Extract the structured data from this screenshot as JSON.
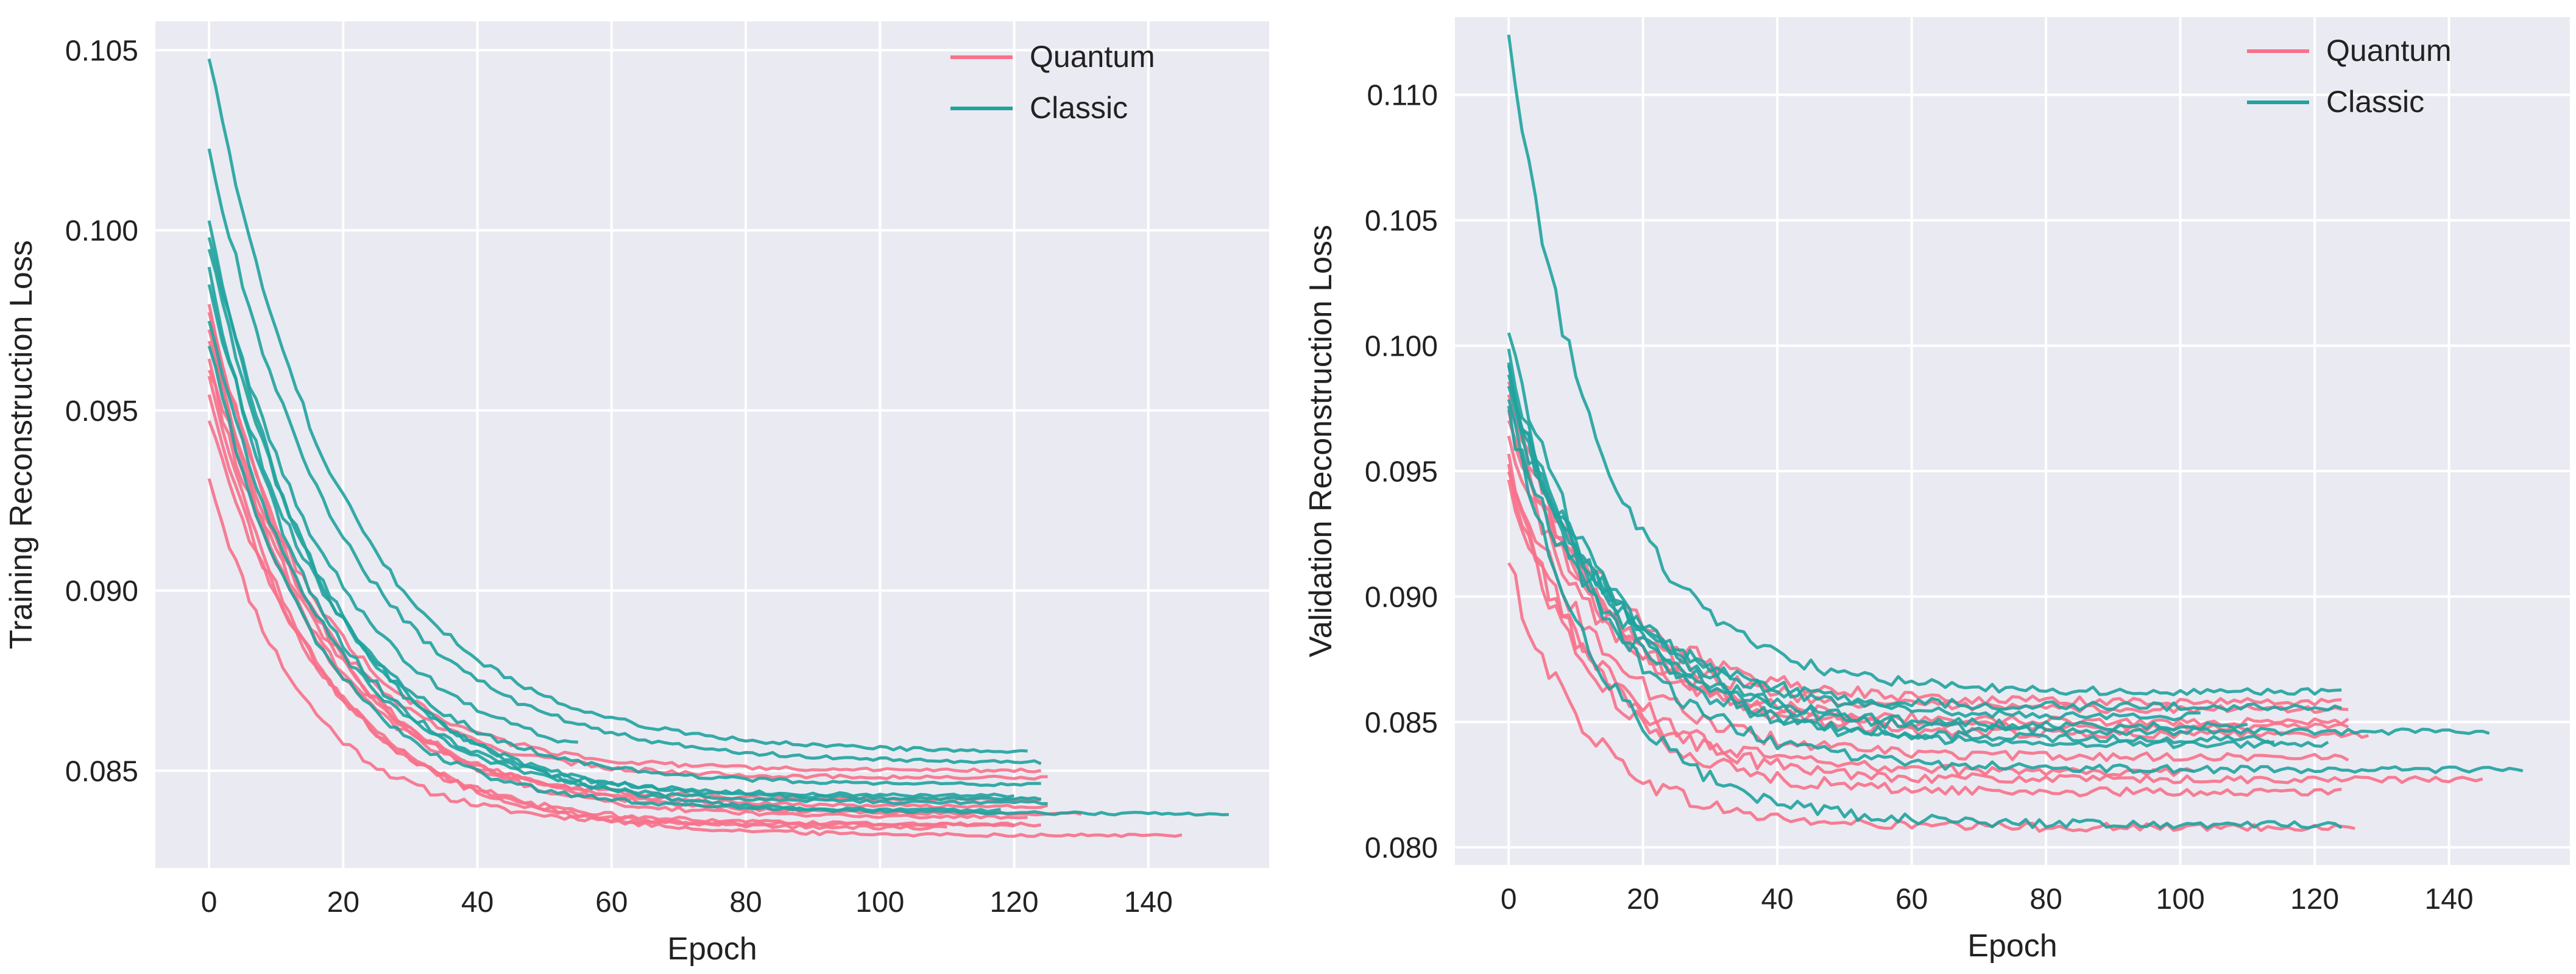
{
  "chart_data": [
    {
      "type": "line",
      "title": "",
      "xlabel": "Epoch",
      "ylabel": "Training Reconstruction Loss",
      "xlim": [
        -8,
        158
      ],
      "ylim": [
        0.0823,
        0.1058
      ],
      "xticks": [
        0,
        20,
        40,
        60,
        80,
        100,
        120,
        140
      ],
      "xtick_labels": [
        "0",
        "20",
        "40",
        "60",
        "80",
        "100",
        "120",
        "140"
      ],
      "yticks": [
        0.085,
        0.09,
        0.095,
        0.1,
        0.105
      ],
      "ytick_labels": [
        "0.085",
        "0.090",
        "0.095",
        "0.100",
        "0.105"
      ],
      "grid": true,
      "legend": {
        "placement": "top-right",
        "entries": [
          {
            "name": "Quantum",
            "color": "#f77189"
          },
          {
            "name": "Classic",
            "color": "#20a39e"
          }
        ]
      },
      "colors": {
        "background": "#eaeaf2",
        "grid": "#ffffff",
        "Quantum": "#f77189",
        "Classic": "#20a39e"
      },
      "series": [
        {
          "name": "Quantum",
          "start": 0.0932,
          "end": 0.0835,
          "epochs": 120,
          "tau": 14
        },
        {
          "name": "Quantum",
          "start": 0.0948,
          "end": 0.0832,
          "epochs": 145,
          "tau": 18
        },
        {
          "name": "Quantum",
          "start": 0.0962,
          "end": 0.084,
          "epochs": 125,
          "tau": 17
        },
        {
          "name": "Quantum",
          "start": 0.0978,
          "end": 0.085,
          "epochs": 124,
          "tau": 16
        },
        {
          "name": "Quantum",
          "start": 0.097,
          "end": 0.0848,
          "epochs": 125,
          "tau": 16
        },
        {
          "name": "Quantum",
          "start": 0.0965,
          "end": 0.0838,
          "epochs": 130,
          "tau": 18
        },
        {
          "name": "Quantum",
          "start": 0.0955,
          "end": 0.0835,
          "epochs": 124,
          "tau": 16
        },
        {
          "name": "Quantum",
          "start": 0.0973,
          "end": 0.0842,
          "epochs": 124,
          "tau": 15
        },
        {
          "name": "Quantum",
          "start": 0.098,
          "end": 0.0837,
          "epochs": 122,
          "tau": 17
        },
        {
          "name": "Quantum",
          "start": 0.096,
          "end": 0.0834,
          "epochs": 110,
          "tau": 16
        },
        {
          "name": "Classic",
          "start": 0.1048,
          "end": 0.0855,
          "epochs": 122,
          "tau": 20
        },
        {
          "name": "Classic",
          "start": 0.1023,
          "end": 0.0852,
          "epochs": 124,
          "tau": 20
        },
        {
          "name": "Classic",
          "start": 0.1003,
          "end": 0.0842,
          "epochs": 124,
          "tau": 17
        },
        {
          "name": "Classic",
          "start": 0.0995,
          "end": 0.0838,
          "epochs": 152,
          "tau": 19
        },
        {
          "name": "Classic",
          "start": 0.099,
          "end": 0.0843,
          "epochs": 120,
          "tau": 16
        },
        {
          "name": "Classic",
          "start": 0.0975,
          "end": 0.0841,
          "epochs": 125,
          "tau": 17
        },
        {
          "name": "Classic",
          "start": 0.0968,
          "end": 0.0839,
          "epochs": 118,
          "tau": 16
        },
        {
          "name": "Classic",
          "start": 0.0985,
          "end": 0.0846,
          "epochs": 124,
          "tau": 18
        },
        {
          "name": "Classic",
          "start": 0.0998,
          "end": 0.0849,
          "epochs": 55,
          "tau": 19
        }
      ]
    },
    {
      "type": "line",
      "title": "",
      "xlabel": "Epoch",
      "ylabel": "Validation Reconstruction Loss",
      "xlim": [
        -8,
        158
      ],
      "ylim": [
        0.0793,
        0.1131
      ],
      "xticks": [
        0,
        20,
        40,
        60,
        80,
        100,
        120,
        140
      ],
      "xtick_labels": [
        "0",
        "20",
        "40",
        "60",
        "80",
        "100",
        "120",
        "140"
      ],
      "yticks": [
        0.08,
        0.085,
        0.09,
        0.095,
        0.1,
        0.105,
        0.11
      ],
      "ytick_labels": [
        "0.080",
        "0.085",
        "0.090",
        "0.095",
        "0.100",
        "0.105",
        "0.110"
      ],
      "grid": true,
      "legend": {
        "placement": "top-right",
        "entries": [
          {
            "name": "Quantum",
            "color": "#f77189"
          },
          {
            "name": "Classic",
            "color": "#20a39e"
          }
        ]
      },
      "colors": {
        "background": "#eaeaf2",
        "grid": "#ffffff",
        "Quantum": "#f77189",
        "Classic": "#20a39e"
      },
      "series": [
        {
          "name": "Quantum",
          "start": 0.0912,
          "end": 0.0808,
          "epochs": 126,
          "tau": 12
        },
        {
          "name": "Quantum",
          "start": 0.0945,
          "end": 0.0822,
          "epochs": 124,
          "tau": 13
        },
        {
          "name": "Quantum",
          "start": 0.0948,
          "end": 0.0827,
          "epochs": 145,
          "tau": 13
        },
        {
          "name": "Quantum",
          "start": 0.0955,
          "end": 0.0836,
          "epochs": 125,
          "tau": 14
        },
        {
          "name": "Quantum",
          "start": 0.0962,
          "end": 0.0848,
          "epochs": 125,
          "tau": 14
        },
        {
          "name": "Quantum",
          "start": 0.0968,
          "end": 0.085,
          "epochs": 125,
          "tau": 14
        },
        {
          "name": "Quantum",
          "start": 0.0972,
          "end": 0.0855,
          "epochs": 125,
          "tau": 14
        },
        {
          "name": "Quantum",
          "start": 0.0978,
          "end": 0.0858,
          "epochs": 124,
          "tau": 15
        },
        {
          "name": "Quantum",
          "start": 0.0983,
          "end": 0.0845,
          "epochs": 128,
          "tau": 14
        },
        {
          "name": "Quantum",
          "start": 0.095,
          "end": 0.083,
          "epochs": 102,
          "tau": 13
        },
        {
          "name": "Classic",
          "start": 0.1121,
          "end": 0.0862,
          "epochs": 124,
          "tau": 14
        },
        {
          "name": "Classic",
          "start": 0.1002,
          "end": 0.0846,
          "epochs": 146,
          "tau": 15
        },
        {
          "name": "Classic",
          "start": 0.099,
          "end": 0.0831,
          "epochs": 151,
          "tau": 15
        },
        {
          "name": "Classic",
          "start": 0.0985,
          "end": 0.0848,
          "epochs": 110,
          "tau": 15
        },
        {
          "name": "Classic",
          "start": 0.0975,
          "end": 0.0809,
          "epochs": 124,
          "tau": 14
        },
        {
          "name": "Classic",
          "start": 0.0995,
          "end": 0.0841,
          "epochs": 122,
          "tau": 15
        },
        {
          "name": "Classic",
          "start": 0.098,
          "end": 0.0852,
          "epochs": 103,
          "tau": 16
        },
        {
          "name": "Classic",
          "start": 0.0972,
          "end": 0.0843,
          "epochs": 114,
          "tau": 15
        },
        {
          "name": "Classic",
          "start": 0.0988,
          "end": 0.0856,
          "epochs": 124,
          "tau": 14
        }
      ]
    }
  ]
}
